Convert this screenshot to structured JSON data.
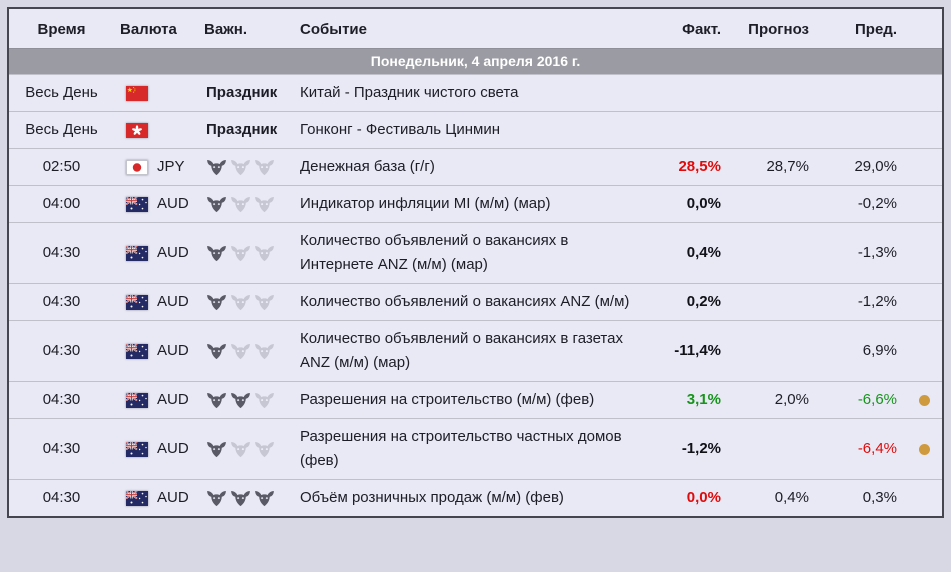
{
  "header": {
    "columns": [
      "Время",
      "Валюта",
      "Важн.",
      "Событие",
      "Факт.",
      "Прогноз",
      "Пред."
    ]
  },
  "date_row": {
    "label": "Понедельник, 4 апреля 2016 г."
  },
  "colors": {
    "accent_red": "#e00b0b",
    "accent_green": "#17941c",
    "dot_orange": "#cf9a3d",
    "date_bar_bg": "#9b9ba3",
    "row_bg": "#e9e9f5",
    "page_bg": "#d8d8e4",
    "bull_dark": "#5a5a66",
    "bull_light": "#c7c7d3"
  },
  "icons": {
    "importance": "bull-head-icon",
    "revised_marker": "orange-dot-icon",
    "flags": [
      "china-flag-icon",
      "hong-kong-flag-icon",
      "japan-flag-icon",
      "australia-flag-icon"
    ]
  },
  "rows": [
    {
      "time": "Весь День",
      "flag": "cn",
      "currency": "",
      "holiday": "Праздник",
      "event": "Китай - Праздник чистого света",
      "forecast": "",
      "dot": false
    },
    {
      "time": "Весь День",
      "flag": "hk",
      "currency": "",
      "holiday": "Праздник",
      "event": "Гонконг - Фестиваль Цинмин",
      "forecast": "",
      "dot": false
    },
    {
      "time": "02:50",
      "flag": "jp",
      "currency": "JPY",
      "importance": 1,
      "event": "Денежная база (г/г)",
      "actual": {
        "text": "28,5%",
        "color": "red"
      },
      "forecast": "28,7%",
      "previous": {
        "text": "29,0%",
        "color": "default"
      },
      "dot": false
    },
    {
      "time": "04:00",
      "flag": "au",
      "currency": "AUD",
      "importance": 1,
      "event": "Индикатор инфляции MI (м/м) (мар)",
      "actual": {
        "text": "0,0%",
        "color": "black"
      },
      "forecast": "",
      "previous": {
        "text": "-0,2%",
        "color": "default"
      },
      "dot": false
    },
    {
      "time": "04:30",
      "flag": "au",
      "currency": "AUD",
      "importance": 1,
      "event": "Количество объявлений о вакансиях в Интернете ANZ (м/м) (мар)",
      "actual": {
        "text": "0,4%",
        "color": "black"
      },
      "forecast": "",
      "previous": {
        "text": "-1,3%",
        "color": "default"
      },
      "dot": false
    },
    {
      "time": "04:30",
      "flag": "au",
      "currency": "AUD",
      "importance": 1,
      "event": "Количество объявлений о вакансиях ANZ (м/м)",
      "actual": {
        "text": "0,2%",
        "color": "black"
      },
      "forecast": "",
      "previous": {
        "text": "-1,2%",
        "color": "default"
      },
      "dot": false
    },
    {
      "time": "04:30",
      "flag": "au",
      "currency": "AUD",
      "importance": 1,
      "event": "Количество объявлений о вакансиях в газетах ANZ (м/м) (мар)",
      "actual": {
        "text": "-11,4%",
        "color": "black"
      },
      "forecast": "",
      "previous": {
        "text": "6,9%",
        "color": "default"
      },
      "dot": false
    },
    {
      "time": "04:30",
      "flag": "au",
      "currency": "AUD",
      "importance": 2,
      "event": "Разрешения на строительство (м/м) (фев)",
      "actual": {
        "text": "3,1%",
        "color": "green"
      },
      "forecast": "2,0%",
      "previous": {
        "text": "-6,6%",
        "color": "green"
      },
      "dot": true
    },
    {
      "time": "04:30",
      "flag": "au",
      "currency": "AUD",
      "importance": 1,
      "event": "Разрешения на строительство частных домов (фев)",
      "actual": {
        "text": "-1,2%",
        "color": "black"
      },
      "forecast": "",
      "previous": {
        "text": "-6,4%",
        "color": "red"
      },
      "dot": true
    },
    {
      "time": "04:30",
      "flag": "au",
      "currency": "AUD",
      "importance": 3,
      "event": "Объём розничных продаж (м/м) (фев)",
      "actual": {
        "text": "0,0%",
        "color": "red"
      },
      "forecast": "0,4%",
      "previous": {
        "text": "0,3%",
        "color": "default"
      },
      "dot": false
    }
  ]
}
